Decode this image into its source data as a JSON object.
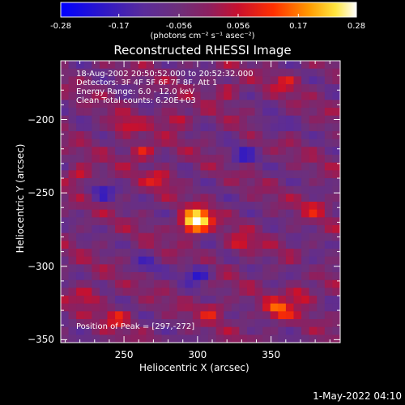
{
  "colorbar": {
    "ticks": [
      "-0.28",
      "-0.17",
      "-0.056",
      "0.056",
      "0.17",
      "0.28"
    ],
    "units": "(photons cm⁻² s⁻¹ asec⁻²)"
  },
  "title": "Reconstructed RHESSI Image",
  "info": {
    "time_range": "18-Aug-2002 20:50:52.000 to 20:52:32.000",
    "detectors": "Detectors: 3F 4F 5F 6F 7F 8F, Att 1",
    "energy": "Energy Range: 6.0 - 12.0 keV",
    "clean": "Clean    Total counts: 6.20E+03"
  },
  "peak": "Position of Peak = [297,-272]",
  "date_stamp": "1-May-2022 04:10",
  "chart_data": {
    "type": "heatmap",
    "title": "Reconstructed RHESSI Image",
    "xlabel": "Heliocentric X (arcsec)",
    "ylabel": "Heliocentric Y (arcsec)",
    "xlim": [
      207,
      397
    ],
    "ylim": [
      -352,
      -160
    ],
    "x_ticks": [
      250,
      300,
      350
    ],
    "y_ticks": [
      -200,
      -250,
      -300,
      -350
    ],
    "x_tick_labels": [
      "250",
      "300",
      "350"
    ],
    "y_tick_labels": [
      "−200",
      "−250",
      "−300",
      "−350"
    ],
    "colorbar_range": [
      -0.28,
      0.28
    ],
    "peak_position": [
      297,
      -272
    ],
    "hot_spots": [
      {
        "x": 297,
        "y": -272,
        "value": 0.28
      },
      {
        "x": 301,
        "y": -266,
        "value": 0.22
      },
      {
        "x": 220,
        "y": -238,
        "value": 0.13
      },
      {
        "x": 262,
        "y": -222,
        "value": 0.14
      },
      {
        "x": 250,
        "y": -205,
        "value": 0.12
      },
      {
        "x": 285,
        "y": -200,
        "value": 0.13
      },
      {
        "x": 225,
        "y": -320,
        "value": 0.13
      },
      {
        "x": 370,
        "y": -320,
        "value": 0.15
      },
      {
        "x": 355,
        "y": -330,
        "value": 0.18
      },
      {
        "x": 330,
        "y": -285,
        "value": 0.12
      },
      {
        "x": 245,
        "y": -335,
        "value": 0.12
      },
      {
        "x": 360,
        "y": -175,
        "value": 0.1
      },
      {
        "x": 320,
        "y": -180,
        "value": 0.1
      },
      {
        "x": 275,
        "y": -240,
        "value": 0.12
      },
      {
        "x": 310,
        "y": -330,
        "value": 0.11
      },
      {
        "x": 380,
        "y": -260,
        "value": 0.09
      }
    ],
    "cold_spots": [
      {
        "x": 235,
        "y": -250,
        "value": -0.12
      },
      {
        "x": 300,
        "y": -305,
        "value": -0.18
      },
      {
        "x": 330,
        "y": -225,
        "value": -0.12
      },
      {
        "x": 350,
        "y": -205,
        "value": -0.1
      },
      {
        "x": 265,
        "y": -300,
        "value": -0.09
      },
      {
        "x": 375,
        "y": -300,
        "value": -0.08
      }
    ]
  }
}
